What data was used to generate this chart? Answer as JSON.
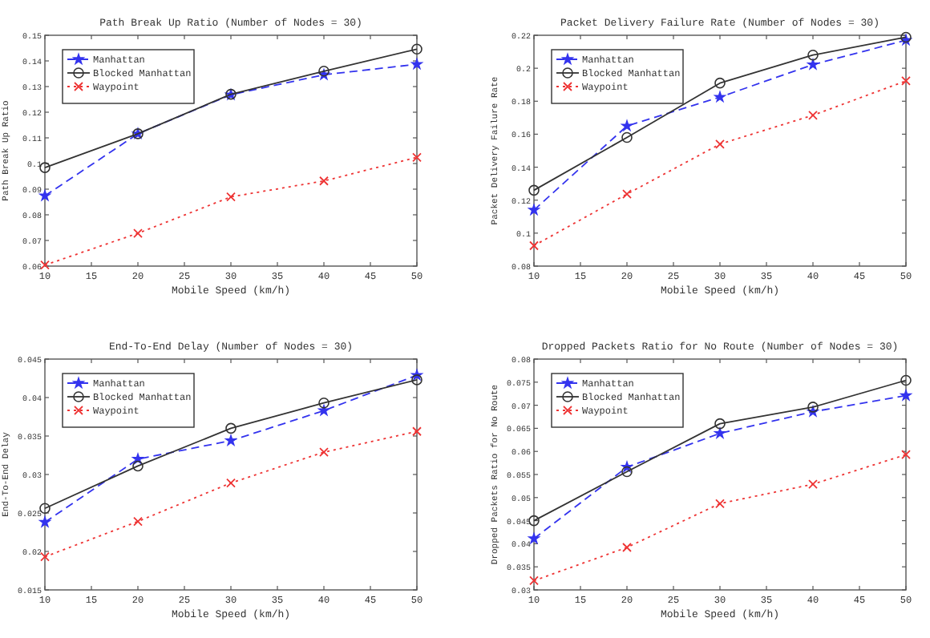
{
  "chart_data": [
    {
      "type": "line",
      "title": "Path Break Up Ratio (Number of Nodes = 30)",
      "xlabel": "Mobile Speed (km/h)",
      "ylabel": "Path Break Up Ratio",
      "x": [
        10,
        20,
        30,
        40,
        50
      ],
      "xlim": [
        10,
        50
      ],
      "xticks": [
        10,
        15,
        20,
        25,
        30,
        35,
        40,
        45,
        50
      ],
      "ylim": [
        0.06,
        0.15
      ],
      "yticks": [
        0.06,
        0.07,
        0.08,
        0.09,
        0.1,
        0.11,
        0.12,
        0.13,
        0.14,
        0.15
      ],
      "legend": "top left",
      "grid": false,
      "series": [
        {
          "name": "Manhattan",
          "color": "#3333ee",
          "marker": "star",
          "line_style": "dashed",
          "values": [
            0.0874,
            0.1116,
            0.1268,
            0.1346,
            0.1387
          ]
        },
        {
          "name": "Blocked Manhattan",
          "color": "#333333",
          "marker": "circle",
          "line_style": "solid",
          "values": [
            0.0984,
            0.1116,
            0.127,
            0.136,
            0.1446
          ]
        },
        {
          "name": "Waypoint",
          "color": "#ee3333",
          "marker": "cross",
          "line_style": "dotted",
          "values": [
            0.0604,
            0.0728,
            0.087,
            0.0932,
            0.1024
          ]
        }
      ]
    },
    {
      "type": "line",
      "title": "Packet Delivery Failure Rate (Number of Nodes = 30)",
      "xlabel": "Mobile Speed (km/h)",
      "ylabel": "Packet Delivery Failure Rate",
      "x": [
        10,
        20,
        30,
        40,
        50
      ],
      "xlim": [
        10,
        50
      ],
      "xticks": [
        10,
        15,
        20,
        25,
        30,
        35,
        40,
        45,
        50
      ],
      "ylim": [
        0.08,
        0.22
      ],
      "yticks": [
        0.08,
        0.1,
        0.12,
        0.14,
        0.16,
        0.18,
        0.2,
        0.22
      ],
      "legend": "top left",
      "grid": false,
      "series": [
        {
          "name": "Manhattan",
          "color": "#3333ee",
          "marker": "star",
          "line_style": "dashed",
          "values": [
            0.114,
            0.165,
            0.1825,
            0.2022,
            0.217
          ]
        },
        {
          "name": "Blocked Manhattan",
          "color": "#333333",
          "marker": "circle",
          "line_style": "solid",
          "values": [
            0.126,
            0.158,
            0.191,
            0.208,
            0.2188
          ]
        },
        {
          "name": "Waypoint",
          "color": "#ee3333",
          "marker": "cross",
          "line_style": "dotted",
          "values": [
            0.0924,
            0.1237,
            0.154,
            0.1715,
            0.1923
          ]
        }
      ]
    },
    {
      "type": "line",
      "title": "End-To-End Delay (Number of Nodes = 30)",
      "xlabel": "Mobile Speed (km/h)",
      "ylabel": "End-To-End Delay",
      "x": [
        10,
        20,
        30,
        40,
        50
      ],
      "xlim": [
        10,
        50
      ],
      "xticks": [
        10,
        15,
        20,
        25,
        30,
        35,
        40,
        45,
        50
      ],
      "ylim": [
        0.015,
        0.045
      ],
      "yticks": [
        0.015,
        0.02,
        0.025,
        0.03,
        0.035,
        0.04,
        0.045
      ],
      "legend": "top left",
      "grid": false,
      "series": [
        {
          "name": "Manhattan",
          "color": "#3333ee",
          "marker": "star",
          "line_style": "dashed",
          "values": [
            0.0238,
            0.032,
            0.0344,
            0.0383,
            0.0429
          ]
        },
        {
          "name": "Blocked Manhattan",
          "color": "#333333",
          "marker": "circle",
          "line_style": "solid",
          "values": [
            0.0256,
            0.0311,
            0.036,
            0.0393,
            0.0423
          ]
        },
        {
          "name": "Waypoint",
          "color": "#ee3333",
          "marker": "cross",
          "line_style": "dotted",
          "values": [
            0.0193,
            0.0239,
            0.0289,
            0.0329,
            0.0356
          ]
        }
      ]
    },
    {
      "type": "line",
      "title": "Dropped Packets Ratio for No Route (Number of Nodes = 30)",
      "xlabel": "Mobile Speed (km/h)",
      "ylabel": "Dropped Packets Ratio for No Route",
      "x": [
        10,
        20,
        30,
        40,
        50
      ],
      "xlim": [
        10,
        50
      ],
      "xticks": [
        10,
        15,
        20,
        25,
        30,
        35,
        40,
        45,
        50
      ],
      "ylim": [
        0.03,
        0.08
      ],
      "yticks": [
        0.03,
        0.035,
        0.04,
        0.045,
        0.05,
        0.055,
        0.06,
        0.065,
        0.07,
        0.075,
        0.08
      ],
      "legend": "top left",
      "grid": false,
      "series": [
        {
          "name": "Manhattan",
          "color": "#3333ee",
          "marker": "star",
          "line_style": "dashed",
          "values": [
            0.0411,
            0.0566,
            0.0639,
            0.0686,
            0.0721
          ]
        },
        {
          "name": "Blocked Manhattan",
          "color": "#333333",
          "marker": "circle",
          "line_style": "solid",
          "values": [
            0.045,
            0.0556,
            0.066,
            0.0696,
            0.0754
          ]
        },
        {
          "name": "Waypoint",
          "color": "#ee3333",
          "marker": "cross",
          "line_style": "dotted",
          "values": [
            0.032,
            0.0392,
            0.0487,
            0.0529,
            0.0593
          ]
        }
      ]
    }
  ]
}
